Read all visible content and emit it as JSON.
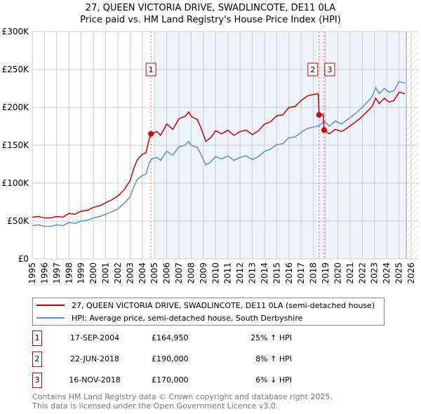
{
  "chart_data": {
    "type": "line",
    "title": "27, QUEEN VICTORIA DRIVE, SWADLINCOTE, DE11 0LA",
    "subtitle": "Price paid vs. HM Land Registry's House Price Index (HPI)",
    "xlim": [
      1995,
      2026
    ],
    "ylim": [
      0,
      300000
    ],
    "x_ticks": [
      "1995",
      "1996",
      "1997",
      "1998",
      "1999",
      "2000",
      "2001",
      "2002",
      "2003",
      "2004",
      "2005",
      "2006",
      "2007",
      "2008",
      "2009",
      "2010",
      "2011",
      "2012",
      "2013",
      "2014",
      "2015",
      "2016",
      "2017",
      "2018",
      "2019",
      "2020",
      "2021",
      "2022",
      "2023",
      "2024",
      "2025",
      "2026"
    ],
    "y_ticks": [
      {
        "v": 0,
        "label": "£0"
      },
      {
        "v": 50000,
        "label": "£50K"
      },
      {
        "v": 100000,
        "label": "£100K"
      },
      {
        "v": 150000,
        "label": "£150K"
      },
      {
        "v": 200000,
        "label": "£200K"
      },
      {
        "v": 250000,
        "label": "£250K"
      },
      {
        "v": 300000,
        "label": "£300K"
      }
    ],
    "grid": true,
    "shaded_from": 2005.0,
    "hatched_from": 2025.6,
    "series": [
      {
        "name": "27, QUEEN VICTORIA DRIVE, SWADLINCOTE, DE11 0LA (semi-detached house)",
        "color": "#cc0000",
        "x": [
          1995,
          1995.5,
          1996,
          1996.5,
          1997,
          1997.5,
          1998,
          1998.5,
          1999,
          1999.5,
          2000,
          2000.5,
          2001,
          2001.5,
          2002,
          2002.5,
          2003,
          2003.3,
          2003.6,
          2004,
          2004.3,
          2004.6,
          2004.71,
          2005.2,
          2005.5,
          2006,
          2006.5,
          2007,
          2007.5,
          2007.8,
          2008,
          2008.5,
          2008.8,
          2009.2,
          2009.6,
          2010,
          2010.5,
          2011,
          2011.5,
          2012,
          2012.5,
          2013,
          2013.5,
          2014,
          2014.5,
          2015,
          2015.5,
          2016,
          2016.5,
          2017,
          2017.5,
          2018,
          2018.4,
          2018.47,
          2018.8,
          2018.88,
          2019.3,
          2019.8,
          2020.3,
          2020.8,
          2021.3,
          2021.8,
          2022.3,
          2022.8,
          2023.1,
          2023.4,
          2023.8,
          2024.2,
          2024.6,
          2025,
          2025.5
        ],
        "y": [
          55000,
          56000,
          54000,
          54000,
          56000,
          55000,
          60000,
          59000,
          63000,
          64000,
          68000,
          70000,
          74000,
          78000,
          83000,
          91000,
          103000,
          119000,
          131000,
          138000,
          140000,
          160000,
          164950,
          168000,
          163000,
          178000,
          171000,
          185000,
          188000,
          194000,
          188000,
          184000,
          173000,
          155000,
          160000,
          169000,
          165000,
          170000,
          163000,
          168000,
          170000,
          164000,
          169000,
          178000,
          181000,
          189000,
          190000,
          200000,
          201000,
          209000,
          215000,
          217000,
          218000,
          190000,
          191000,
          170000,
          165000,
          171000,
          168000,
          173000,
          179000,
          185000,
          193000,
          201000,
          212000,
          205000,
          212000,
          207000,
          209000,
          220000,
          218000
        ]
      },
      {
        "name": "HPI: Average price, semi-detached house, South Derbyshire",
        "color": "#5b8fd0",
        "x": [
          1995,
          1995.5,
          1996,
          1996.5,
          1997,
          1997.5,
          1998,
          1998.5,
          1999,
          1999.5,
          2000,
          2000.5,
          2001,
          2001.5,
          2002,
          2002.5,
          2003,
          2003.3,
          2003.6,
          2004,
          2004.3,
          2004.6,
          2004.8,
          2005.2,
          2005.5,
          2006,
          2006.5,
          2007,
          2007.5,
          2007.8,
          2008,
          2008.5,
          2008.8,
          2009.2,
          2009.6,
          2010,
          2010.5,
          2011,
          2011.5,
          2012,
          2012.5,
          2013,
          2013.5,
          2014,
          2014.5,
          2015,
          2015.5,
          2016,
          2016.5,
          2017,
          2017.5,
          2018,
          2018.5,
          2018.9,
          2019.3,
          2019.8,
          2020.3,
          2020.8,
          2021.3,
          2021.8,
          2022.3,
          2022.8,
          2023.1,
          2023.4,
          2023.8,
          2024.2,
          2024.6,
          2025,
          2025.5
        ],
        "y": [
          44000,
          45000,
          43000,
          43000,
          45000,
          44000,
          48000,
          47000,
          50000,
          51000,
          54000,
          56000,
          59000,
          62000,
          66000,
          73000,
          82000,
          95000,
          105000,
          110000,
          112000,
          128000,
          132000,
          134000,
          130000,
          142000,
          137000,
          148000,
          150000,
          155000,
          150000,
          147000,
          138000,
          124000,
          128000,
          135000,
          132000,
          136000,
          130000,
          134000,
          136000,
          131000,
          135000,
          142000,
          145000,
          151000,
          152000,
          160000,
          161000,
          167000,
          172000,
          174000,
          176000,
          182000,
          175000,
          182000,
          178000,
          184000,
          190000,
          197000,
          205000,
          214000,
          226000,
          218000,
          225000,
          220000,
          222000,
          234000,
          232000
        ]
      }
    ],
    "sales": [
      {
        "n": "1",
        "x": 2004.71,
        "y": 164950
      },
      {
        "n": "2",
        "x": 2018.47,
        "y": 190000
      },
      {
        "n": "3",
        "x": 2018.88,
        "y": 170000
      }
    ]
  },
  "legend": {
    "property": "27, QUEEN VICTORIA DRIVE, SWADLINCOTE, DE11 0LA (semi-detached house)",
    "hpi": "HPI: Average price, semi-detached house, South Derbyshire"
  },
  "transactions": [
    {
      "n": "1",
      "date": "17-SEP-2004",
      "price": "£164,950",
      "hpi": "25% ↑ HPI"
    },
    {
      "n": "2",
      "date": "22-JUN-2018",
      "price": "£190,000",
      "hpi": "8% ↑ HPI"
    },
    {
      "n": "3",
      "date": "16-NOV-2018",
      "price": "£170,000",
      "hpi": "6% ↓ HPI"
    }
  ],
  "footer": {
    "line1": "Contains HM Land Registry data © Crown copyright and database right 2025.",
    "line2": "This data is licensed under the Open Government Licence v3.0."
  }
}
